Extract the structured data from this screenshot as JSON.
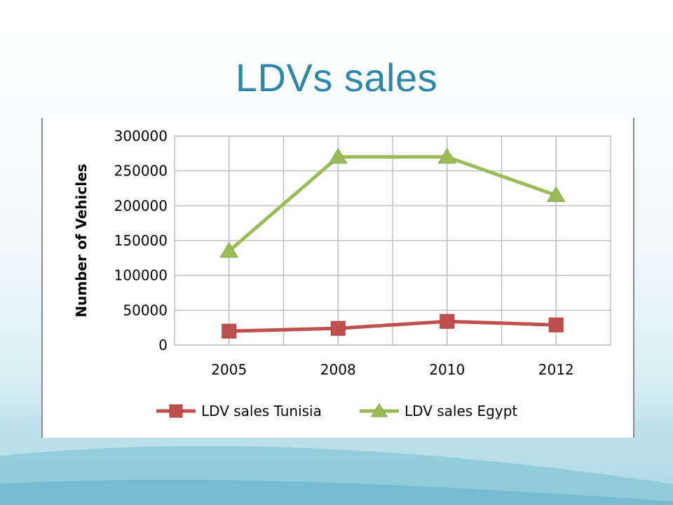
{
  "slide": {
    "title": "LDVs sales"
  },
  "colors": {
    "title": "#2e87a6",
    "tunisia": "#c0504d",
    "egypt": "#9bbb59",
    "grid": "#bfbfbf"
  },
  "chart_data": {
    "type": "line",
    "title": "",
    "xlabel": "",
    "ylabel": "Number of Vehicles",
    "categories": [
      "2005",
      "2008",
      "2010",
      "2012"
    ],
    "ylim": [
      0,
      300000
    ],
    "yticks": [
      0,
      50000,
      100000,
      150000,
      200000,
      250000,
      300000
    ],
    "grid": true,
    "legend_position": "bottom",
    "series": [
      {
        "name": "LDV sales Tunisia",
        "marker": "square",
        "color": "#c0504d",
        "values": [
          20000,
          24000,
          34000,
          29000
        ]
      },
      {
        "name": "LDV sales Egypt",
        "marker": "triangle",
        "color": "#9bbb59",
        "values": [
          135000,
          270000,
          270000,
          215000
        ]
      }
    ]
  }
}
